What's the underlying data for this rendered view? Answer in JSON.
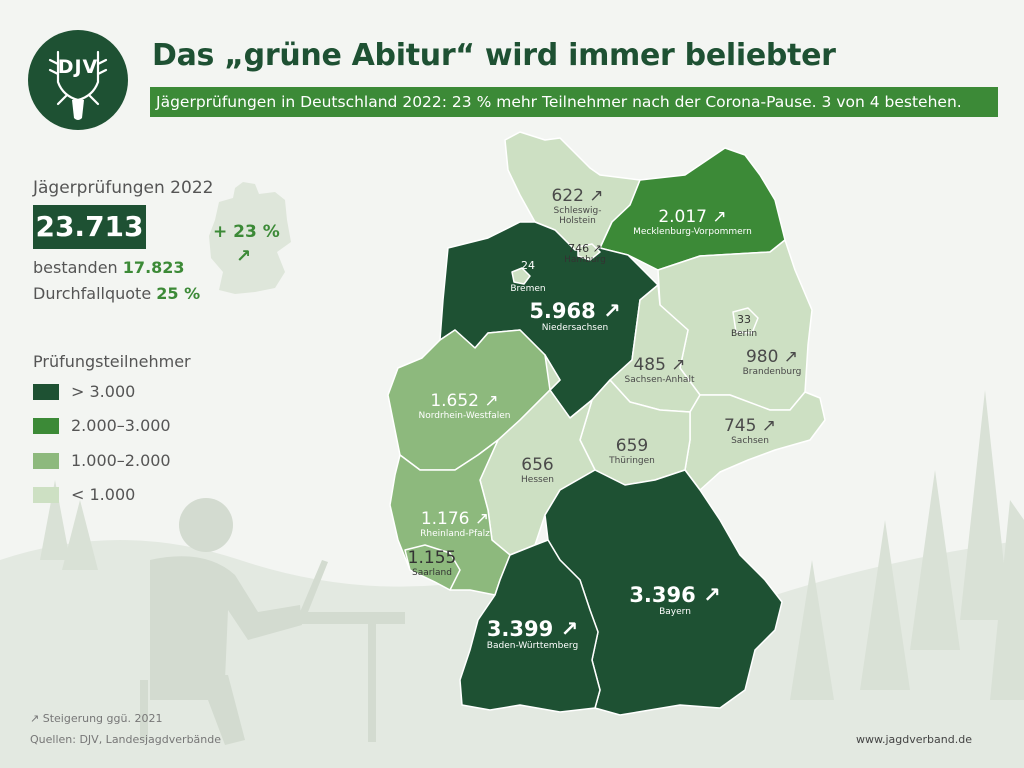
{
  "colors": {
    "tier_1": "#1e5133",
    "tier_2": "#3c8a37",
    "tier_3": "#8db97d",
    "tier_4": "#cde0c3",
    "background": "#f3f5f2",
    "accent": "#3c8a37"
  },
  "logo": {
    "text": "DJV",
    "icon": "deer-antler-icon"
  },
  "header": {
    "title": "Das „grüne Abitur“ wird immer beliebter",
    "subtitle": "Jägerprüfungen in Deutschland 2022: 23 % mehr Teilnehmer nach der Corona-Pause. 3 von 4 bestehen."
  },
  "stats": {
    "label": "Jägerprüfungen 2022",
    "total": "23.713",
    "passed_label": "bestanden",
    "passed_value": "17.823",
    "fail_label": "Durchfallquote",
    "fail_value": "25 %",
    "change": "+ 23 %",
    "change_arrow": "↗"
  },
  "legend": {
    "title": "Prüfungsteilnehmer",
    "items": [
      {
        "label": "> 3.000",
        "color": "#1e5133"
      },
      {
        "label": "2.000–3.000",
        "color": "#3c8a37"
      },
      {
        "label": "1.000–2.000",
        "color": "#8db97d"
      },
      {
        "label": "< 1.000",
        "color": "#cde0c3"
      }
    ]
  },
  "states": [
    {
      "name": "Schleswig-Holstein",
      "display": "Schleswig-\nHolstein",
      "value": "622",
      "arrow": "↗"
    },
    {
      "name": "Mecklenburg-Vorpommern",
      "display": "Mecklenburg-Vorpommern",
      "value": "2.017",
      "arrow": "↗"
    },
    {
      "name": "Hamburg",
      "display": "Hamburg",
      "value": "746",
      "arrow": "↗"
    },
    {
      "name": "Bremen",
      "display": "Bremen",
      "value": "24",
      "arrow": ""
    },
    {
      "name": "Niedersachsen",
      "display": "Niedersachsen",
      "value": "5.968",
      "arrow": "↗"
    },
    {
      "name": "Berlin",
      "display": "Berlin",
      "value": "33",
      "arrow": ""
    },
    {
      "name": "Brandenburg",
      "display": "Brandenburg",
      "value": "980",
      "arrow": "↗"
    },
    {
      "name": "Sachsen-Anhalt",
      "display": "Sachsen-Anhalt",
      "value": "485",
      "arrow": "↗"
    },
    {
      "name": "Nordrhein-Westfalen",
      "display": "Nordrhein-Westfalen",
      "value": "1.652",
      "arrow": "↗"
    },
    {
      "name": "Sachsen",
      "display": "Sachsen",
      "value": "745",
      "arrow": "↗"
    },
    {
      "name": "Thüringen",
      "display": "Thüringen",
      "value": "659",
      "arrow": ""
    },
    {
      "name": "Hessen",
      "display": "Hessen",
      "value": "656",
      "arrow": ""
    },
    {
      "name": "Rheinland-Pfalz",
      "display": "Rheinland-Pfalz",
      "value": "1.176",
      "arrow": "↗"
    },
    {
      "name": "Saarland",
      "display": "Saarland",
      "value": "1.155",
      "arrow": ""
    },
    {
      "name": "Bayern",
      "display": "Bayern",
      "value": "3.396",
      "arrow": "↗"
    },
    {
      "name": "Baden-Württemberg",
      "display": "Baden-Württemberg",
      "value": "3.399",
      "arrow": "↗"
    }
  ],
  "footer": {
    "note": "↗ Steigerung ggü. 2021",
    "source": "Quellen: DJV, Landesjagdverbände",
    "url": "www.jagdverband.de"
  }
}
